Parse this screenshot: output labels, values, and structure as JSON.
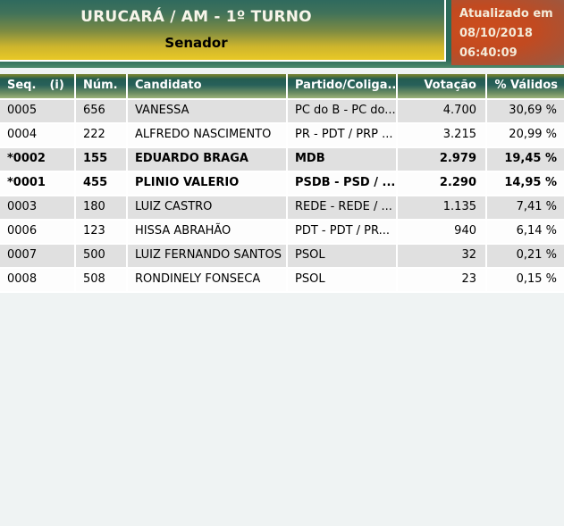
{
  "header": {
    "title": "URUCARÁ / AM - 1º TURNO",
    "subtitle": "Senador",
    "updated_label": "Atualizado em",
    "updated_date": "08/10/2018",
    "updated_time": "06:40:09"
  },
  "table": {
    "columns": {
      "seq": "Seq.",
      "seq_info": "(i)",
      "num": "Núm.",
      "candidato": "Candidato",
      "partido": "Partido/Coliga...",
      "votacao": "Votação",
      "pct": "% Válidos"
    },
    "rows": [
      {
        "seq": "0005",
        "num": "656",
        "candidato": "VANESSA",
        "partido": "PC do B - PC do...",
        "votacao": "4.700",
        "pct": "30,69 %",
        "bold": false
      },
      {
        "seq": "0004",
        "num": "222",
        "candidato": "ALFREDO NASCIMENTO",
        "partido": "PR - PDT / PRP ...",
        "votacao": "3.215",
        "pct": "20,99 %",
        "bold": false
      },
      {
        "seq": "*0002",
        "num": "155",
        "candidato": "EDUARDO BRAGA",
        "partido": "MDB",
        "votacao": "2.979",
        "pct": "19,45 %",
        "bold": true
      },
      {
        "seq": "*0001",
        "num": "455",
        "candidato": "PLINIO VALERIO",
        "partido": "PSDB - PSD / ...",
        "votacao": "2.290",
        "pct": "14,95 %",
        "bold": true
      },
      {
        "seq": "0003",
        "num": "180",
        "candidato": "LUIZ CASTRO",
        "partido": "REDE - REDE / ...",
        "votacao": "1.135",
        "pct": "7,41 %",
        "bold": false
      },
      {
        "seq": "0006",
        "num": "123",
        "candidato": "HISSA ABRAHÃO",
        "partido": "PDT - PDT / PR...",
        "votacao": "940",
        "pct": "6,14 %",
        "bold": false
      },
      {
        "seq": "0007",
        "num": "500",
        "candidato": "LUIZ FERNANDO SANTOS",
        "partido": "PSOL",
        "votacao": "32",
        "pct": "0,21 %",
        "bold": false
      },
      {
        "seq": "0008",
        "num": "508",
        "candidato": "RONDINELY FONSECA",
        "partido": "PSOL",
        "votacao": "23",
        "pct": "0,15 %",
        "bold": false
      }
    ]
  },
  "colors": {
    "frame_green": "#2d6b5a",
    "header_gradient_top": "#2f6a5e",
    "header_gradient_bottom": "#e9c826",
    "updated_box_orange": "#c24a20",
    "table_header_green": "#235c50",
    "row_stripe_gray": "#e0e0e0",
    "row_white": "#fdfdfd",
    "page_background": "#eff3f3"
  }
}
